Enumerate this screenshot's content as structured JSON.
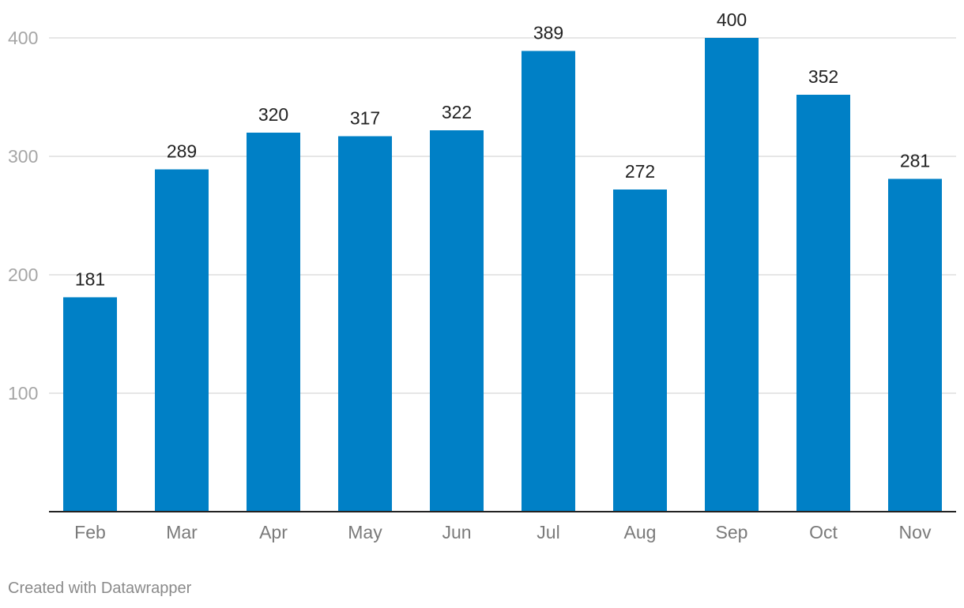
{
  "chart_data": {
    "type": "bar",
    "title": "",
    "xlabel": "",
    "ylabel": "",
    "categories": [
      "Feb",
      "Mar",
      "Apr",
      "May",
      "Jun",
      "Jul",
      "Aug",
      "Sep",
      "Oct",
      "Nov"
    ],
    "values": [
      181,
      289,
      320,
      317,
      322,
      389,
      272,
      400,
      352,
      281
    ],
    "ylim": [
      0,
      400
    ],
    "yticks": [
      100,
      200,
      300,
      400
    ],
    "grid": true,
    "data_labels": true,
    "bar_color": "#0080C6"
  },
  "footer": {
    "credit": "Created with Datawrapper"
  }
}
